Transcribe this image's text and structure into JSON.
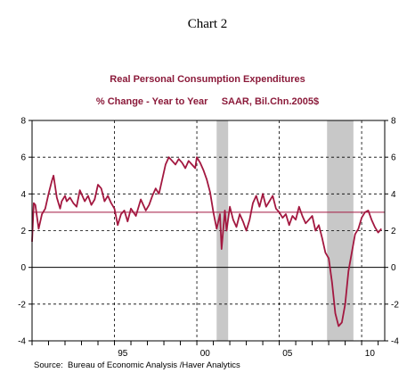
{
  "header": "Chart 2",
  "source": "Source:  Bureau of Economic Analysis /Haver Analytics",
  "colors": {
    "series": "#a31840",
    "title": "#8b1a3a",
    "recession": "#c8c8c8",
    "reference": "#a31840"
  },
  "chart_data": {
    "type": "line",
    "title": "Real Personal Consumption Expenditures",
    "subtitle": "% Change - Year to Year     SAAR, Bil.Chn.2005$",
    "xlabel": "",
    "ylabel": "",
    "xlim": [
      1990.0,
      2011.4
    ],
    "ylim": [
      -4,
      8
    ],
    "yticks": [
      -4,
      -2,
      0,
      2,
      4,
      6,
      8
    ],
    "xtick_labels": [
      {
        "x": 1995,
        "label": "95"
      },
      {
        "x": 2000,
        "label": "00"
      },
      {
        "x": 2005,
        "label": "05"
      },
      {
        "x": 2010,
        "label": "10"
      }
    ],
    "grid": true,
    "right_axis": true,
    "reference_line": 3.0,
    "zero_line": true,
    "recessions": [
      [
        2001.2,
        2001.9
      ],
      [
        2007.9,
        2009.5
      ]
    ],
    "series": [
      {
        "x": [
          1990.0,
          1990.1,
          1990.2,
          1990.4,
          1990.6,
          1990.8,
          1991.0,
          1991.2,
          1991.3,
          1991.5,
          1991.7,
          1991.8,
          1992.0,
          1992.1,
          1992.3,
          1992.5,
          1992.7,
          1992.9,
          1993.0,
          1993.2,
          1993.4,
          1993.6,
          1993.8,
          1994.0,
          1994.2,
          1994.4,
          1994.6,
          1994.8,
          1995.0,
          1995.2,
          1995.4,
          1995.6,
          1995.8,
          1996.0,
          1996.3,
          1996.6,
          1996.9,
          1997.1,
          1997.3,
          1997.5,
          1997.7,
          1997.9,
          1998.1,
          1998.3,
          1998.5,
          1998.7,
          1998.9,
          1999.1,
          1999.3,
          1999.5,
          1999.7,
          1999.9,
          2000.0,
          2000.2,
          2000.4,
          2000.6,
          2000.8,
          2001.0,
          2001.2,
          2001.4,
          2001.5,
          2001.7,
          2001.8,
          2002.0,
          2002.2,
          2002.4,
          2002.6,
          2002.8,
          2003.0,
          2003.2,
          2003.4,
          2003.6,
          2003.8,
          2004.0,
          2004.2,
          2004.4,
          2004.6,
          2004.8,
          2005.0,
          2005.2,
          2005.4,
          2005.6,
          2005.8,
          2006.0,
          2006.2,
          2006.4,
          2006.6,
          2006.8,
          2007.0,
          2007.2,
          2007.4,
          2007.6,
          2007.8,
          2008.0,
          2008.2,
          2008.4,
          2008.6,
          2008.8,
          2009.0,
          2009.2,
          2009.4,
          2009.6,
          2009.8,
          2010.0,
          2010.2,
          2010.4,
          2010.6,
          2010.8,
          2011.0,
          2011.2
        ],
        "values": [
          1.4,
          3.5,
          3.4,
          2.1,
          2.9,
          3.2,
          4.0,
          4.7,
          5.0,
          3.8,
          3.2,
          3.6,
          3.9,
          3.6,
          3.8,
          3.5,
          3.3,
          4.2,
          4.0,
          3.6,
          3.9,
          3.4,
          3.7,
          4.5,
          4.3,
          3.6,
          3.9,
          3.5,
          3.2,
          2.3,
          2.9,
          3.1,
          2.5,
          3.2,
          2.8,
          3.7,
          3.1,
          3.4,
          3.9,
          4.3,
          4.0,
          4.8,
          5.6,
          6.0,
          5.8,
          5.6,
          5.9,
          5.7,
          5.4,
          5.8,
          5.6,
          5.4,
          6.0,
          5.7,
          5.3,
          4.8,
          4.1,
          3.0,
          2.1,
          2.9,
          1.0,
          3.1,
          2.0,
          3.3,
          2.6,
          2.2,
          2.9,
          2.5,
          2.0,
          2.6,
          3.5,
          3.9,
          3.3,
          4.0,
          3.3,
          3.6,
          3.9,
          3.2,
          3.0,
          2.7,
          2.9,
          2.3,
          2.8,
          2.6,
          3.3,
          2.8,
          2.4,
          2.6,
          2.8,
          2.0,
          2.3,
          1.6,
          0.8,
          0.5,
          -0.8,
          -2.5,
          -3.2,
          -3.0,
          -2.0,
          -0.2,
          0.8,
          1.8,
          2.1,
          2.7,
          3.0,
          3.1,
          2.6,
          2.2,
          1.9,
          2.1
        ]
      }
    ]
  }
}
